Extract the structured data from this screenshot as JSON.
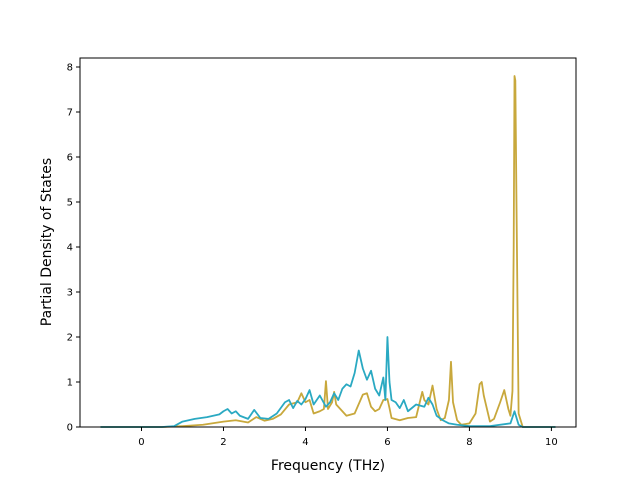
{
  "chart_data": {
    "type": "line",
    "title": "",
    "xlabel": "Frequency (THz)",
    "ylabel": "Partial Density of States",
    "xlim": [
      -1.5,
      10.6
    ],
    "ylim": [
      0,
      8.2
    ],
    "xticks": [
      0,
      2,
      4,
      6,
      8,
      10
    ],
    "yticks": [
      0,
      1,
      2,
      3,
      4,
      5,
      6,
      7,
      8
    ],
    "grid": false,
    "legend": "none",
    "series": [
      {
        "color": "#c8a83c",
        "line_width": 1.8,
        "points": [
          [
            -1.0,
            0.0
          ],
          [
            0.0,
            0.0
          ],
          [
            0.5,
            0.0
          ],
          [
            1.0,
            0.02
          ],
          [
            1.5,
            0.05
          ],
          [
            2.0,
            0.12
          ],
          [
            2.3,
            0.15
          ],
          [
            2.6,
            0.1
          ],
          [
            2.8,
            0.22
          ],
          [
            3.0,
            0.14
          ],
          [
            3.2,
            0.18
          ],
          [
            3.4,
            0.28
          ],
          [
            3.6,
            0.5
          ],
          [
            3.8,
            0.55
          ],
          [
            3.9,
            0.75
          ],
          [
            4.0,
            0.55
          ],
          [
            4.1,
            0.6
          ],
          [
            4.2,
            0.3
          ],
          [
            4.35,
            0.35
          ],
          [
            4.45,
            0.4
          ],
          [
            4.5,
            1.02
          ],
          [
            4.55,
            0.4
          ],
          [
            4.65,
            0.55
          ],
          [
            4.7,
            0.78
          ],
          [
            4.75,
            0.5
          ],
          [
            4.85,
            0.4
          ],
          [
            5.0,
            0.25
          ],
          [
            5.2,
            0.3
          ],
          [
            5.4,
            0.72
          ],
          [
            5.5,
            0.75
          ],
          [
            5.6,
            0.45
          ],
          [
            5.7,
            0.35
          ],
          [
            5.8,
            0.4
          ],
          [
            5.9,
            0.6
          ],
          [
            6.0,
            0.62
          ],
          [
            6.05,
            0.42
          ],
          [
            6.1,
            0.2
          ],
          [
            6.3,
            0.15
          ],
          [
            6.5,
            0.2
          ],
          [
            6.7,
            0.22
          ],
          [
            6.85,
            0.78
          ],
          [
            6.9,
            0.6
          ],
          [
            7.0,
            0.5
          ],
          [
            7.1,
            0.92
          ],
          [
            7.2,
            0.4
          ],
          [
            7.3,
            0.15
          ],
          [
            7.4,
            0.2
          ],
          [
            7.5,
            0.6
          ],
          [
            7.55,
            1.45
          ],
          [
            7.6,
            0.55
          ],
          [
            7.7,
            0.15
          ],
          [
            7.8,
            0.05
          ],
          [
            8.0,
            0.08
          ],
          [
            8.15,
            0.3
          ],
          [
            8.25,
            0.95
          ],
          [
            8.3,
            1.0
          ],
          [
            8.35,
            0.7
          ],
          [
            8.5,
            0.12
          ],
          [
            8.6,
            0.18
          ],
          [
            8.75,
            0.55
          ],
          [
            8.85,
            0.82
          ],
          [
            8.95,
            0.4
          ],
          [
            9.0,
            0.25
          ],
          [
            9.05,
            0.8
          ],
          [
            9.08,
            4.0
          ],
          [
            9.1,
            7.8
          ],
          [
            9.12,
            7.7
          ],
          [
            9.15,
            4.8
          ],
          [
            9.2,
            0.3
          ],
          [
            9.3,
            0.0
          ],
          [
            10.1,
            0.0
          ]
        ]
      },
      {
        "color": "#2aa9c2",
        "line_width": 1.8,
        "points": [
          [
            -1.0,
            0.0
          ],
          [
            0.0,
            0.0
          ],
          [
            0.5,
            0.0
          ],
          [
            0.8,
            0.02
          ],
          [
            1.0,
            0.12
          ],
          [
            1.3,
            0.18
          ],
          [
            1.6,
            0.22
          ],
          [
            1.9,
            0.28
          ],
          [
            2.0,
            0.35
          ],
          [
            2.1,
            0.4
          ],
          [
            2.2,
            0.3
          ],
          [
            2.3,
            0.35
          ],
          [
            2.4,
            0.25
          ],
          [
            2.6,
            0.18
          ],
          [
            2.75,
            0.38
          ],
          [
            2.9,
            0.2
          ],
          [
            3.1,
            0.18
          ],
          [
            3.3,
            0.3
          ],
          [
            3.5,
            0.55
          ],
          [
            3.6,
            0.6
          ],
          [
            3.7,
            0.42
          ],
          [
            3.8,
            0.58
          ],
          [
            3.9,
            0.5
          ],
          [
            4.0,
            0.62
          ],
          [
            4.1,
            0.82
          ],
          [
            4.2,
            0.5
          ],
          [
            4.35,
            0.7
          ],
          [
            4.5,
            0.45
          ],
          [
            4.6,
            0.55
          ],
          [
            4.7,
            0.75
          ],
          [
            4.8,
            0.6
          ],
          [
            4.9,
            0.85
          ],
          [
            5.0,
            0.95
          ],
          [
            5.1,
            0.9
          ],
          [
            5.2,
            1.2
          ],
          [
            5.3,
            1.7
          ],
          [
            5.4,
            1.3
          ],
          [
            5.5,
            1.05
          ],
          [
            5.6,
            1.25
          ],
          [
            5.7,
            0.85
          ],
          [
            5.8,
            0.7
          ],
          [
            5.9,
            1.1
          ],
          [
            5.95,
            0.6
          ],
          [
            6.0,
            2.0
          ],
          [
            6.05,
            1.0
          ],
          [
            6.1,
            0.6
          ],
          [
            6.2,
            0.55
          ],
          [
            6.3,
            0.42
          ],
          [
            6.4,
            0.6
          ],
          [
            6.5,
            0.35
          ],
          [
            6.7,
            0.5
          ],
          [
            6.9,
            0.45
          ],
          [
            7.0,
            0.65
          ],
          [
            7.1,
            0.5
          ],
          [
            7.2,
            0.25
          ],
          [
            7.35,
            0.15
          ],
          [
            7.5,
            0.08
          ],
          [
            7.7,
            0.05
          ],
          [
            8.0,
            0.02
          ],
          [
            8.5,
            0.02
          ],
          [
            9.0,
            0.08
          ],
          [
            9.1,
            0.35
          ],
          [
            9.2,
            0.05
          ],
          [
            9.3,
            0.0
          ],
          [
            10.1,
            0.0
          ]
        ]
      }
    ]
  }
}
